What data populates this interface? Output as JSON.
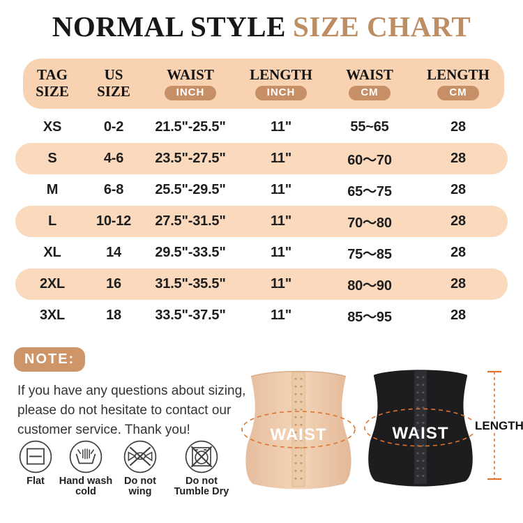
{
  "title": {
    "main": "NORMAL STYLE",
    "accent": "SIZE CHART"
  },
  "colors": {
    "accent_tan": "#bd8e63",
    "header_bg": "#f8d2b1",
    "row_band_bg": "#fad9bc",
    "unit_pill_bg": "#c68f66",
    "note_pill_bg": "#ce9569",
    "dash_orange": "#e0742f"
  },
  "table": {
    "columns": [
      {
        "line1": "TAG",
        "line2": "SIZE",
        "unit": ""
      },
      {
        "line1": "US",
        "line2": "SIZE",
        "unit": ""
      },
      {
        "line1": "WAIST",
        "line2": "",
        "unit": "INCH"
      },
      {
        "line1": "LENGTH",
        "line2": "",
        "unit": "INCH"
      },
      {
        "line1": "WAIST",
        "line2": "",
        "unit": "CM"
      },
      {
        "line1": "LENGTH",
        "line2": "",
        "unit": "CM"
      }
    ],
    "rows": [
      {
        "tag": "XS",
        "us": "0-2",
        "waist_inch": "21.5\"-25.5\"",
        "length_inch": "11\"",
        "waist_cm": "55~65",
        "length_cm": "28",
        "highlight": false
      },
      {
        "tag": "S",
        "us": "4-6",
        "waist_inch": "23.5\"-27.5\"",
        "length_inch": "11\"",
        "waist_cm": "60〜70",
        "length_cm": "28",
        "highlight": true
      },
      {
        "tag": "M",
        "us": "6-8",
        "waist_inch": "25.5\"-29.5\"",
        "length_inch": "11\"",
        "waist_cm": "65〜75",
        "length_cm": "28",
        "highlight": false
      },
      {
        "tag": "L",
        "us": "10-12",
        "waist_inch": "27.5\"-31.5\"",
        "length_inch": "11\"",
        "waist_cm": "70〜80",
        "length_cm": "28",
        "highlight": true
      },
      {
        "tag": "XL",
        "us": "14",
        "waist_inch": "29.5\"-33.5\"",
        "length_inch": "11\"",
        "waist_cm": "75〜85",
        "length_cm": "28",
        "highlight": false
      },
      {
        "tag": "2XL",
        "us": "16",
        "waist_inch": "31.5\"-35.5\"",
        "length_inch": "11\"",
        "waist_cm": "80〜90",
        "length_cm": "28",
        "highlight": true
      },
      {
        "tag": "3XL",
        "us": "18",
        "waist_inch": "33.5\"-37.5\"",
        "length_inch": "11\"",
        "waist_cm": "85〜95",
        "length_cm": "28",
        "highlight": false
      }
    ]
  },
  "note": {
    "label": "NOTE:",
    "lines": [
      "If you have any questions about sizing,",
      "please do not hesitate to contact our",
      "customer service. Thank you!"
    ]
  },
  "care": {
    "items": [
      {
        "name": "dry-flat",
        "line1": "Flat",
        "line2": ""
      },
      {
        "name": "hand-wash-cold",
        "line1": "Hand wash",
        "line2": "cold"
      },
      {
        "name": "do-not-wring",
        "line1": "Do not",
        "line2": "wing"
      },
      {
        "name": "do-not-tumble-dry",
        "line1": "Do not",
        "line2": "Tumble Dry"
      }
    ]
  },
  "figures": {
    "waist_label": "WAIST",
    "length_label": "LENGTH"
  }
}
